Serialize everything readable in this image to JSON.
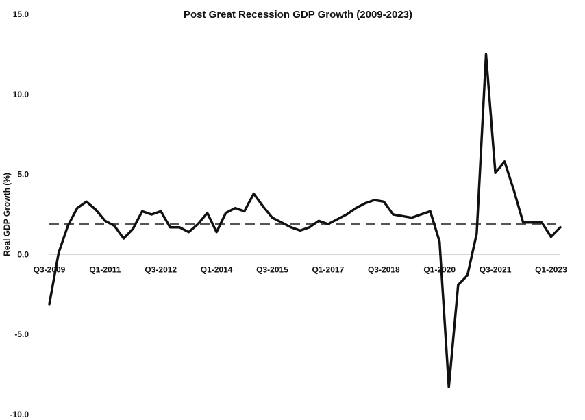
{
  "chart_data": {
    "type": "line",
    "title": "Post Great Recession GDP Growth  (2009-2023)",
    "xlabel": "",
    "ylabel": "Real GDP Growth (%)",
    "ylim": [
      -10,
      15
    ],
    "yticks": [
      {
        "value": 15,
        "label": "15.0"
      },
      {
        "value": 10,
        "label": "10.0"
      },
      {
        "value": 5,
        "label": "5.0"
      },
      {
        "value": 0,
        "label": "0.0"
      },
      {
        "value": -5,
        "label": "-5.0"
      },
      {
        "value": -10,
        "label": "-10.0"
      }
    ],
    "x": [
      "Q3-2009",
      "Q4-2009",
      "Q1-2010",
      "Q2-2010",
      "Q3-2010",
      "Q4-2010",
      "Q1-2011",
      "Q2-2011",
      "Q3-2011",
      "Q4-2011",
      "Q1-2012",
      "Q2-2012",
      "Q3-2012",
      "Q4-2012",
      "Q1-2013",
      "Q2-2013",
      "Q3-2013",
      "Q4-2013",
      "Q1-2014",
      "Q2-2014",
      "Q3-2014",
      "Q4-2014",
      "Q1-2015",
      "Q2-2015",
      "Q3-2015",
      "Q4-2015",
      "Q1-2016",
      "Q2-2016",
      "Q3-2016",
      "Q4-2016",
      "Q1-2017",
      "Q2-2017",
      "Q3-2017",
      "Q4-2017",
      "Q1-2018",
      "Q2-2018",
      "Q3-2018",
      "Q4-2018",
      "Q1-2019",
      "Q2-2019",
      "Q3-2019",
      "Q4-2019",
      "Q1-2020",
      "Q2-2020",
      "Q3-2020",
      "Q4-2020",
      "Q1-2021",
      "Q2-2021",
      "Q3-2021",
      "Q4-2021",
      "Q1-2022",
      "Q2-2022",
      "Q3-2022",
      "Q4-2022",
      "Q1-2023",
      "Q2-2023"
    ],
    "xtick_labels": [
      {
        "index": 0,
        "label": "Q3-2009"
      },
      {
        "index": 6,
        "label": "Q1-2011"
      },
      {
        "index": 12,
        "label": "Q3-2012"
      },
      {
        "index": 18,
        "label": "Q1-2014"
      },
      {
        "index": 24,
        "label": "Q3-2015"
      },
      {
        "index": 30,
        "label": "Q1-2017"
      },
      {
        "index": 36,
        "label": "Q3-2018"
      },
      {
        "index": 42,
        "label": "Q1-2020"
      },
      {
        "index": 48,
        "label": "Q3-2021"
      },
      {
        "index": 54,
        "label": "Q1-2023"
      }
    ],
    "series": [
      {
        "name": "",
        "color": "#111111",
        "style": "solid",
        "values": [
          -3.1,
          0.1,
          1.8,
          2.9,
          3.3,
          2.8,
          2.1,
          1.8,
          1.0,
          1.6,
          2.7,
          2.5,
          2.7,
          1.7,
          1.7,
          1.4,
          1.9,
          2.6,
          1.4,
          2.6,
          2.9,
          2.7,
          3.8,
          3.0,
          2.3,
          2.0,
          1.7,
          1.5,
          1.7,
          2.1,
          1.9,
          2.2,
          2.5,
          2.9,
          3.2,
          3.4,
          3.3,
          2.5,
          2.4,
          2.3,
          2.5,
          2.7,
          0.8,
          -8.3,
          -1.9,
          -1.3,
          1.3,
          12.5,
          5.1,
          5.8,
          4.0,
          2.0,
          2.0,
          2.0,
          1.1,
          1.7
        ]
      },
      {
        "name": "",
        "color": "#555555",
        "style": "dashed",
        "values": [
          1.9,
          1.9,
          1.9,
          1.9,
          1.9,
          1.9,
          1.9,
          1.9,
          1.9,
          1.9,
          1.9,
          1.9,
          1.9,
          1.9,
          1.9,
          1.9,
          1.9,
          1.9,
          1.9,
          1.9,
          1.9,
          1.9,
          1.9,
          1.9,
          1.9,
          1.9,
          1.9,
          1.9,
          1.9,
          1.9,
          1.9,
          1.9,
          1.9,
          1.9,
          1.9,
          1.9,
          1.9,
          1.9,
          1.9,
          1.9,
          1.9,
          1.9,
          1.9,
          1.9,
          1.9,
          1.9,
          1.9,
          1.9,
          1.9,
          1.9,
          1.9,
          1.9,
          1.9,
          1.9,
          1.9,
          1.9
        ]
      }
    ],
    "grid": false,
    "legend": "none"
  }
}
